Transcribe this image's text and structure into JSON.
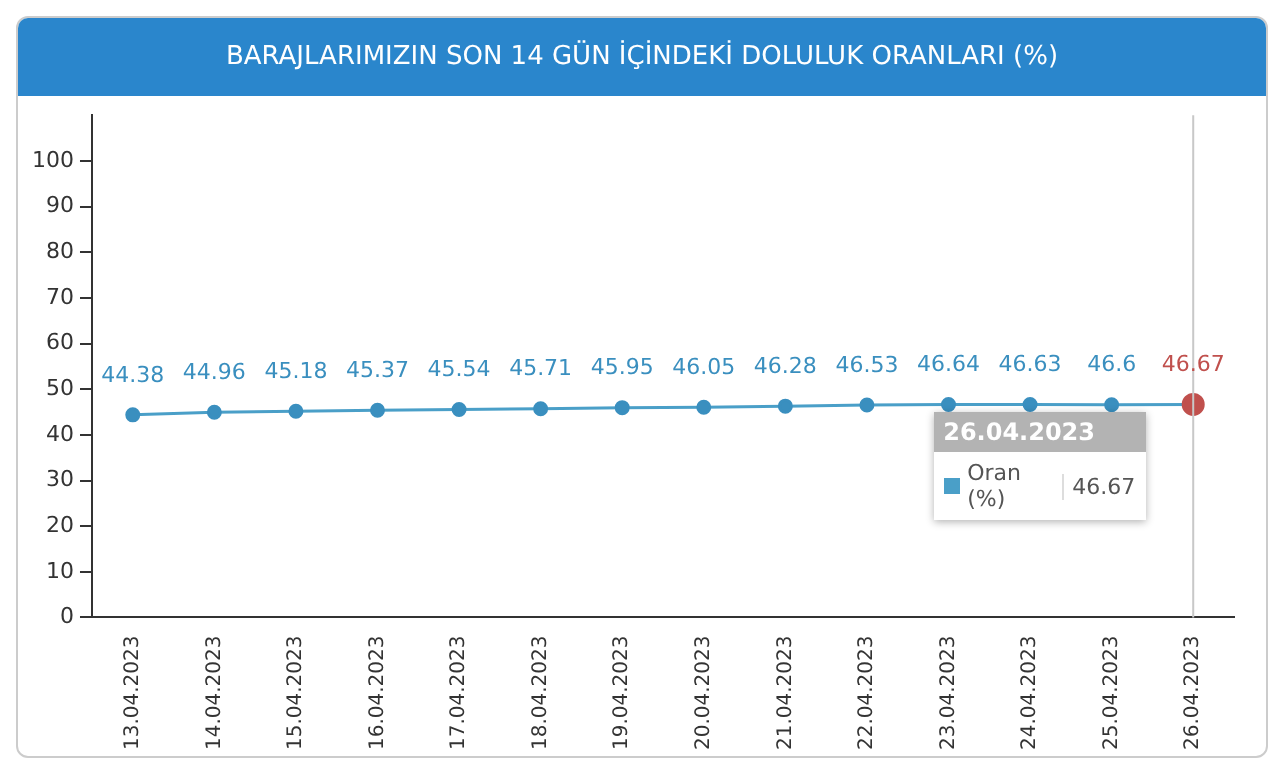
{
  "chart_data": {
    "type": "line",
    "title": "BARAJLARIMIZIN SON 14 GÜN İÇİNDEKİ DOLULUK ORANLARI (%)",
    "categories": [
      "13.04.2023",
      "14.04.2023",
      "15.04.2023",
      "16.04.2023",
      "17.04.2023",
      "18.04.2023",
      "19.04.2023",
      "20.04.2023",
      "21.04.2023",
      "22.04.2023",
      "23.04.2023",
      "24.04.2023",
      "25.04.2023",
      "26.04.2023"
    ],
    "series": [
      {
        "name": "Oran (%)",
        "color": "#4a9fc8",
        "colors": [
          "#3a8fbf",
          "#3a8fbf",
          "#3a8fbf",
          "#3a8fbf",
          "#3a8fbf",
          "#3a8fbf",
          "#3a8fbf",
          "#3a8fbf",
          "#3a8fbf",
          "#3a8fbf",
          "#3a8fbf",
          "#3a8fbf",
          "#3a8fbf",
          "#c0504d"
        ],
        "values": [
          44.38,
          44.96,
          45.18,
          45.37,
          45.54,
          45.71,
          45.95,
          46.05,
          46.28,
          46.53,
          46.64,
          46.63,
          46.6,
          46.67
        ]
      }
    ],
    "ylim": [
      0,
      110
    ],
    "yticks": [
      0,
      10,
      20,
      30,
      40,
      50,
      60,
      70,
      80,
      90,
      100
    ],
    "grid": false,
    "legend": "right",
    "legend_title": "26.04.2023",
    "marker": "circle",
    "line_style": "solid",
    "data_labels": true,
    "ref_lines": [
      {
        "axis": "x",
        "value": "26.04.2023",
        "color": "#c8c8c8"
      }
    ],
    "annotations": [
      "46.67"
    ]
  }
}
